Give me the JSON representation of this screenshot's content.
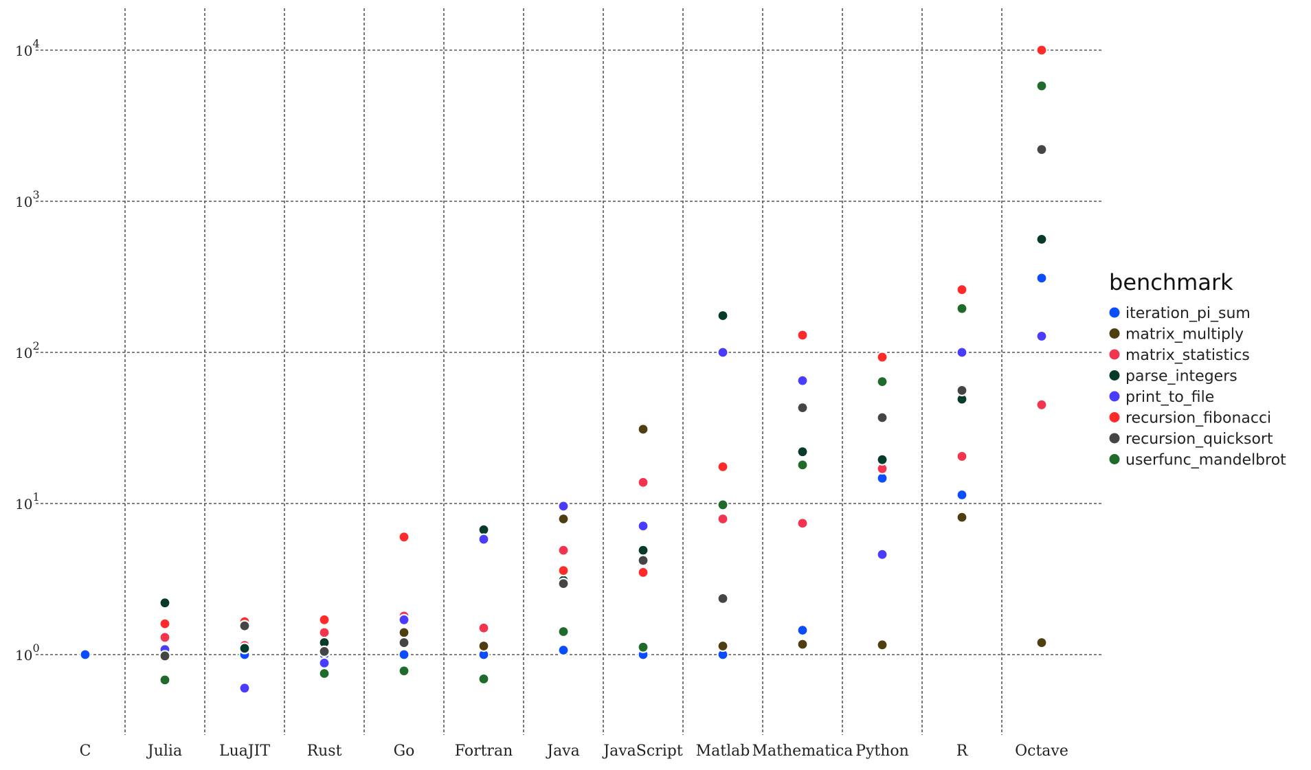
{
  "chart_data": {
    "type": "scatter",
    "title": "",
    "xlabel": "",
    "ylabel": "",
    "y_scale": "log",
    "ylim": [
      0.35,
      12000
    ],
    "y_ticks": [
      {
        "value": 1,
        "base": "10",
        "exp": "0"
      },
      {
        "value": 10,
        "base": "10",
        "exp": "1"
      },
      {
        "value": 100,
        "base": "10",
        "exp": "2"
      },
      {
        "value": 1000,
        "base": "10",
        "exp": "3"
      },
      {
        "value": 10000,
        "base": "10",
        "exp": "4"
      }
    ],
    "grid": true,
    "legend_position": "right",
    "categories": [
      "C",
      "Julia",
      "LuaJIT",
      "Rust",
      "Go",
      "Fortran",
      "Java",
      "JavaScript",
      "Matlab",
      "Mathematica",
      "Python",
      "R",
      "Octave"
    ],
    "legend_title": "benchmark",
    "series": [
      {
        "name": "iteration_pi_sum",
        "color": "#0a4dff",
        "values": [
          1.0,
          1.0,
          1.0,
          1.0,
          1.0,
          1.0,
          1.07,
          1.0,
          1.0,
          1.45,
          14.7,
          11.4,
          310
        ]
      },
      {
        "name": "matrix_multiply",
        "color": "#4f3f10",
        "values": [
          null,
          1.05,
          1.1,
          1.05,
          1.4,
          1.14,
          7.9,
          31,
          1.14,
          1.17,
          1.16,
          8.1,
          1.2
        ]
      },
      {
        "name": "matrix_statistics",
        "color": "#f2344e",
        "values": [
          null,
          1.3,
          1.15,
          1.4,
          1.8,
          1.5,
          4.9,
          13.8,
          7.9,
          7.4,
          17,
          20.5,
          45
        ]
      },
      {
        "name": "parse_integers",
        "color": "#063a2a",
        "values": [
          null,
          2.2,
          1.1,
          1.2,
          null,
          6.7,
          3.1,
          4.9,
          175,
          22,
          19.5,
          49,
          560
        ]
      },
      {
        "name": "print_to_file",
        "color": "#4a3cff",
        "values": [
          null,
          1.08,
          0.6,
          0.88,
          1.7,
          5.8,
          9.6,
          7.1,
          100,
          65,
          4.6,
          100,
          128
        ]
      },
      {
        "name": "recursion_fibonacci",
        "color": "#ff2a2a",
        "values": [
          null,
          1.6,
          1.65,
          1.7,
          6.0,
          null,
          3.6,
          3.5,
          17.5,
          130,
          93,
          260,
          10000
        ]
      },
      {
        "name": "recursion_quicksort",
        "color": "#454545",
        "values": [
          null,
          0.98,
          1.55,
          1.05,
          1.2,
          null,
          2.95,
          4.2,
          2.35,
          43,
          37,
          56,
          2200
        ]
      },
      {
        "name": "userfunc_mandelbrot",
        "color": "#1e6b2c",
        "values": [
          null,
          0.68,
          null,
          0.75,
          0.78,
          0.69,
          1.42,
          1.12,
          9.8,
          18,
          64,
          195,
          5800
        ]
      }
    ]
  }
}
